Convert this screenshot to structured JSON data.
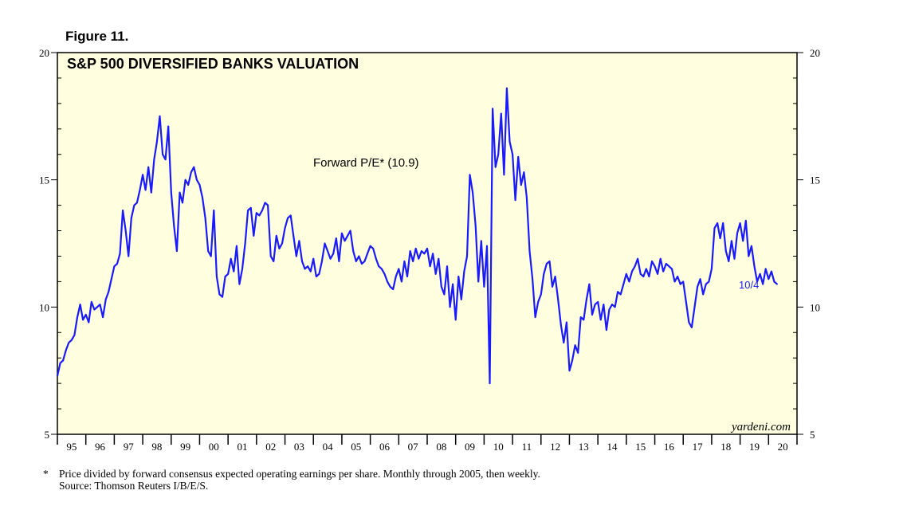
{
  "figure_label": "Figure 11.",
  "chart_data": {
    "type": "line",
    "title": "S&P 500 DIVERSIFIED BANKS VALUATION",
    "annotation": "Forward P/E* (10.9)",
    "last_value_label": "10/4",
    "brand": "yardeni.com",
    "ylim": [
      5,
      20
    ],
    "y_ticks": [
      5,
      10,
      15,
      20
    ],
    "y_tick_labels": [
      "5",
      "10",
      "15",
      "20"
    ],
    "x_range": [
      1995,
      2021
    ],
    "x_tick_labels": [
      "95",
      "96",
      "97",
      "98",
      "99",
      "00",
      "01",
      "02",
      "03",
      "04",
      "05",
      "06",
      "07",
      "08",
      "09",
      "10",
      "11",
      "12",
      "13",
      "14",
      "15",
      "16",
      "17",
      "18",
      "19",
      "20"
    ],
    "series": [
      {
        "name": "Forward P/E",
        "color": "#1a1aff",
        "points": [
          [
            1995.0,
            7.3
          ],
          [
            1995.1,
            7.8
          ],
          [
            1995.2,
            7.9
          ],
          [
            1995.3,
            8.3
          ],
          [
            1995.4,
            8.6
          ],
          [
            1995.5,
            8.7
          ],
          [
            1995.6,
            8.9
          ],
          [
            1995.7,
            9.6
          ],
          [
            1995.8,
            10.1
          ],
          [
            1995.9,
            9.5
          ],
          [
            1996.0,
            9.7
          ],
          [
            1996.1,
            9.4
          ],
          [
            1996.2,
            10.2
          ],
          [
            1996.3,
            9.9
          ],
          [
            1996.4,
            10.0
          ],
          [
            1996.5,
            10.1
          ],
          [
            1996.6,
            9.6
          ],
          [
            1996.7,
            10.3
          ],
          [
            1996.8,
            10.6
          ],
          [
            1996.9,
            11.1
          ],
          [
            1997.0,
            11.6
          ],
          [
            1997.1,
            11.7
          ],
          [
            1997.2,
            12.1
          ],
          [
            1997.3,
            13.8
          ],
          [
            1997.4,
            13.0
          ],
          [
            1997.5,
            12.0
          ],
          [
            1997.6,
            13.5
          ],
          [
            1997.7,
            14.0
          ],
          [
            1997.8,
            14.1
          ],
          [
            1997.9,
            14.6
          ],
          [
            1998.0,
            15.2
          ],
          [
            1998.1,
            14.6
          ],
          [
            1998.2,
            15.5
          ],
          [
            1998.3,
            14.5
          ],
          [
            1998.4,
            15.8
          ],
          [
            1998.5,
            16.5
          ],
          [
            1998.6,
            17.5
          ],
          [
            1998.7,
            16.0
          ],
          [
            1998.8,
            15.8
          ],
          [
            1998.9,
            17.1
          ],
          [
            1999.0,
            14.5
          ],
          [
            1999.1,
            13.2
          ],
          [
            1999.2,
            12.2
          ],
          [
            1999.3,
            14.5
          ],
          [
            1999.4,
            14.1
          ],
          [
            1999.5,
            15.0
          ],
          [
            1999.6,
            14.8
          ],
          [
            1999.7,
            15.3
          ],
          [
            1999.8,
            15.5
          ],
          [
            1999.9,
            15.0
          ],
          [
            2000.0,
            14.8
          ],
          [
            2000.1,
            14.3
          ],
          [
            2000.2,
            13.5
          ],
          [
            2000.3,
            12.2
          ],
          [
            2000.4,
            12.0
          ],
          [
            2000.5,
            13.8
          ],
          [
            2000.6,
            11.2
          ],
          [
            2000.7,
            10.5
          ],
          [
            2000.8,
            10.4
          ],
          [
            2000.9,
            11.2
          ],
          [
            2001.0,
            11.3
          ],
          [
            2001.1,
            11.9
          ],
          [
            2001.2,
            11.4
          ],
          [
            2001.3,
            12.4
          ],
          [
            2001.4,
            10.9
          ],
          [
            2001.5,
            11.5
          ],
          [
            2001.6,
            12.5
          ],
          [
            2001.7,
            13.8
          ],
          [
            2001.8,
            13.9
          ],
          [
            2001.9,
            12.8
          ],
          [
            2002.0,
            13.7
          ],
          [
            2002.1,
            13.6
          ],
          [
            2002.2,
            13.8
          ],
          [
            2002.3,
            14.1
          ],
          [
            2002.4,
            14.0
          ],
          [
            2002.5,
            12.0
          ],
          [
            2002.6,
            11.8
          ],
          [
            2002.7,
            12.8
          ],
          [
            2002.8,
            12.3
          ],
          [
            2002.9,
            12.5
          ],
          [
            2003.0,
            13.1
          ],
          [
            2003.1,
            13.5
          ],
          [
            2003.2,
            13.6
          ],
          [
            2003.3,
            12.8
          ],
          [
            2003.4,
            12.0
          ],
          [
            2003.5,
            12.6
          ],
          [
            2003.6,
            11.8
          ],
          [
            2003.7,
            11.5
          ],
          [
            2003.8,
            11.6
          ],
          [
            2003.9,
            11.4
          ],
          [
            2004.0,
            11.9
          ],
          [
            2004.1,
            11.2
          ],
          [
            2004.2,
            11.3
          ],
          [
            2004.3,
            11.8
          ],
          [
            2004.4,
            12.5
          ],
          [
            2004.5,
            12.2
          ],
          [
            2004.6,
            11.9
          ],
          [
            2004.7,
            12.1
          ],
          [
            2004.8,
            12.7
          ],
          [
            2004.9,
            11.8
          ],
          [
            2005.0,
            12.9
          ],
          [
            2005.1,
            12.6
          ],
          [
            2005.2,
            12.8
          ],
          [
            2005.3,
            13.0
          ],
          [
            2005.4,
            12.2
          ],
          [
            2005.5,
            11.8
          ],
          [
            2005.6,
            12.0
          ],
          [
            2005.7,
            11.7
          ],
          [
            2005.8,
            11.8
          ],
          [
            2005.9,
            12.1
          ],
          [
            2006.0,
            12.4
          ],
          [
            2006.1,
            12.3
          ],
          [
            2006.2,
            11.9
          ],
          [
            2006.3,
            11.6
          ],
          [
            2006.4,
            11.5
          ],
          [
            2006.5,
            11.3
          ],
          [
            2006.6,
            11.0
          ],
          [
            2006.7,
            10.8
          ],
          [
            2006.8,
            10.7
          ],
          [
            2006.9,
            11.2
          ],
          [
            2007.0,
            11.5
          ],
          [
            2007.1,
            11.0
          ],
          [
            2007.2,
            11.8
          ],
          [
            2007.3,
            11.2
          ],
          [
            2007.4,
            12.2
          ],
          [
            2007.5,
            11.8
          ],
          [
            2007.6,
            12.3
          ],
          [
            2007.7,
            11.9
          ],
          [
            2007.8,
            12.2
          ],
          [
            2007.9,
            12.1
          ],
          [
            2008.0,
            12.3
          ],
          [
            2008.1,
            11.6
          ],
          [
            2008.2,
            12.1
          ],
          [
            2008.3,
            11.3
          ],
          [
            2008.4,
            11.9
          ],
          [
            2008.5,
            10.8
          ],
          [
            2008.6,
            10.5
          ],
          [
            2008.7,
            11.6
          ],
          [
            2008.8,
            10.0
          ],
          [
            2008.9,
            10.9
          ],
          [
            2009.0,
            9.5
          ],
          [
            2009.1,
            11.2
          ],
          [
            2009.2,
            10.3
          ],
          [
            2009.3,
            11.4
          ],
          [
            2009.4,
            12.0
          ],
          [
            2009.5,
            15.2
          ],
          [
            2009.6,
            14.5
          ],
          [
            2009.7,
            13.2
          ],
          [
            2009.8,
            11.0
          ],
          [
            2009.9,
            12.6
          ],
          [
            2010.0,
            10.8
          ],
          [
            2010.1,
            12.4
          ],
          [
            2010.2,
            7.0
          ],
          [
            2010.3,
            17.8
          ],
          [
            2010.4,
            15.5
          ],
          [
            2010.5,
            16.0
          ],
          [
            2010.6,
            17.6
          ],
          [
            2010.7,
            15.2
          ],
          [
            2010.8,
            18.6
          ],
          [
            2010.9,
            16.5
          ],
          [
            2011.0,
            16.0
          ],
          [
            2011.1,
            14.2
          ],
          [
            2011.2,
            15.9
          ],
          [
            2011.3,
            14.8
          ],
          [
            2011.4,
            15.3
          ],
          [
            2011.5,
            14.3
          ],
          [
            2011.6,
            12.2
          ],
          [
            2011.7,
            11.1
          ],
          [
            2011.8,
            9.6
          ],
          [
            2011.9,
            10.2
          ],
          [
            2012.0,
            10.5
          ],
          [
            2012.1,
            11.3
          ],
          [
            2012.2,
            11.7
          ],
          [
            2012.3,
            11.8
          ],
          [
            2012.4,
            10.8
          ],
          [
            2012.5,
            11.2
          ],
          [
            2012.6,
            10.3
          ],
          [
            2012.7,
            9.3
          ],
          [
            2012.8,
            8.6
          ],
          [
            2012.9,
            9.4
          ],
          [
            2013.0,
            7.5
          ],
          [
            2013.1,
            7.9
          ],
          [
            2013.2,
            8.5
          ],
          [
            2013.3,
            8.2
          ],
          [
            2013.4,
            9.6
          ],
          [
            2013.5,
            9.5
          ],
          [
            2013.6,
            10.3
          ],
          [
            2013.7,
            10.9
          ],
          [
            2013.8,
            9.7
          ],
          [
            2013.9,
            10.1
          ],
          [
            2014.0,
            10.2
          ],
          [
            2014.1,
            9.5
          ],
          [
            2014.2,
            10.1
          ],
          [
            2014.3,
            9.1
          ],
          [
            2014.4,
            9.9
          ],
          [
            2014.5,
            10.1
          ],
          [
            2014.6,
            10.0
          ],
          [
            2014.7,
            10.6
          ],
          [
            2014.8,
            10.5
          ],
          [
            2014.9,
            10.9
          ],
          [
            2015.0,
            11.3
          ],
          [
            2015.1,
            11.0
          ],
          [
            2015.2,
            11.4
          ],
          [
            2015.3,
            11.6
          ],
          [
            2015.4,
            11.9
          ],
          [
            2015.5,
            11.3
          ],
          [
            2015.6,
            11.2
          ],
          [
            2015.7,
            11.5
          ],
          [
            2015.8,
            11.2
          ],
          [
            2015.9,
            11.8
          ],
          [
            2016.0,
            11.6
          ],
          [
            2016.1,
            11.3
          ],
          [
            2016.2,
            11.9
          ],
          [
            2016.3,
            11.4
          ],
          [
            2016.4,
            11.7
          ],
          [
            2016.5,
            11.6
          ],
          [
            2016.6,
            11.5
          ],
          [
            2016.7,
            11.0
          ],
          [
            2016.8,
            11.2
          ],
          [
            2016.9,
            10.9
          ],
          [
            2017.0,
            11.0
          ],
          [
            2017.1,
            10.2
          ],
          [
            2017.2,
            9.4
          ],
          [
            2017.3,
            9.2
          ],
          [
            2017.4,
            10.0
          ],
          [
            2017.5,
            10.8
          ],
          [
            2017.6,
            11.1
          ],
          [
            2017.7,
            10.5
          ],
          [
            2017.8,
            10.9
          ],
          [
            2017.9,
            11.0
          ],
          [
            2018.0,
            11.5
          ],
          [
            2018.1,
            13.1
          ],
          [
            2018.2,
            13.3
          ],
          [
            2018.3,
            12.7
          ],
          [
            2018.4,
            13.3
          ],
          [
            2018.5,
            12.2
          ],
          [
            2018.6,
            11.8
          ],
          [
            2018.7,
            12.6
          ],
          [
            2018.8,
            11.9
          ],
          [
            2018.9,
            12.9
          ],
          [
            2019.0,
            13.3
          ],
          [
            2019.1,
            12.6
          ],
          [
            2019.2,
            13.4
          ],
          [
            2019.3,
            12.0
          ],
          [
            2019.4,
            12.4
          ],
          [
            2019.5,
            11.6
          ],
          [
            2019.6,
            11.0
          ],
          [
            2019.7,
            11.3
          ],
          [
            2019.8,
            10.9
          ],
          [
            2019.9,
            11.5
          ],
          [
            2020.0,
            11.1
          ],
          [
            2020.1,
            11.4
          ],
          [
            2020.2,
            11.0
          ],
          [
            2020.3,
            10.9
          ]
        ]
      }
    ],
    "footnote": "Price divided by forward consensus expected operating earnings per share. Monthly through 2005, then weekly.",
    "footnote_marker": "*",
    "source": "Source: Thomson Reuters I/B/E/S."
  }
}
